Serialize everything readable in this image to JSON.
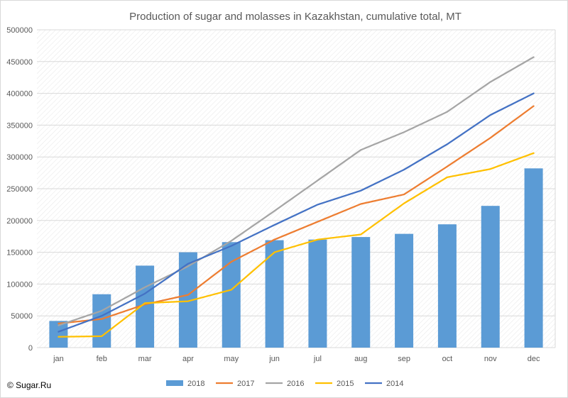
{
  "chart_data": {
    "type": "bar",
    "title": "Production of sugar and molasses in Kazakhstan, cumulative total, MT",
    "categories": [
      "jan",
      "feb",
      "mar",
      "apr",
      "may",
      "jun",
      "jul",
      "aug",
      "sep",
      "oct",
      "nov",
      "dec"
    ],
    "ylim": [
      0,
      500000
    ],
    "yticks": [
      "0",
      "50000",
      "100000",
      "150000",
      "200000",
      "250000",
      "300000",
      "350000",
      "400000",
      "450000",
      "500000"
    ],
    "grid": true,
    "legend_position": "bottom",
    "series": [
      {
        "name": "2018",
        "kind": "bar",
        "color": "#5b9bd5",
        "values": [
          42000,
          84000,
          129000,
          150000,
          166000,
          169000,
          170000,
          174000,
          179000,
          194000,
          223000,
          282000
        ]
      },
      {
        "name": "2017",
        "kind": "line",
        "color": "#ed7d31",
        "values": [
          38000,
          45000,
          68000,
          83000,
          135000,
          170000,
          198000,
          226000,
          241000,
          285000,
          330000,
          380000
        ]
      },
      {
        "name": "2016",
        "kind": "line",
        "color": "#a5a5a5",
        "values": [
          35000,
          58000,
          95000,
          128000,
          168000,
          215000,
          263000,
          311000,
          339000,
          371000,
          418000,
          457000
        ]
      },
      {
        "name": "2015",
        "kind": "line",
        "color": "#ffc000",
        "values": [
          17000,
          18000,
          70000,
          73000,
          91000,
          150000,
          170000,
          178000,
          227000,
          268000,
          281000,
          306000
        ]
      },
      {
        "name": "2014",
        "kind": "line",
        "color": "#4472c4",
        "values": [
          25000,
          50000,
          85000,
          132000,
          160000,
          193000,
          225000,
          247000,
          280000,
          320000,
          366000,
          400000
        ]
      }
    ]
  },
  "copyright": "© Sugar.Ru"
}
